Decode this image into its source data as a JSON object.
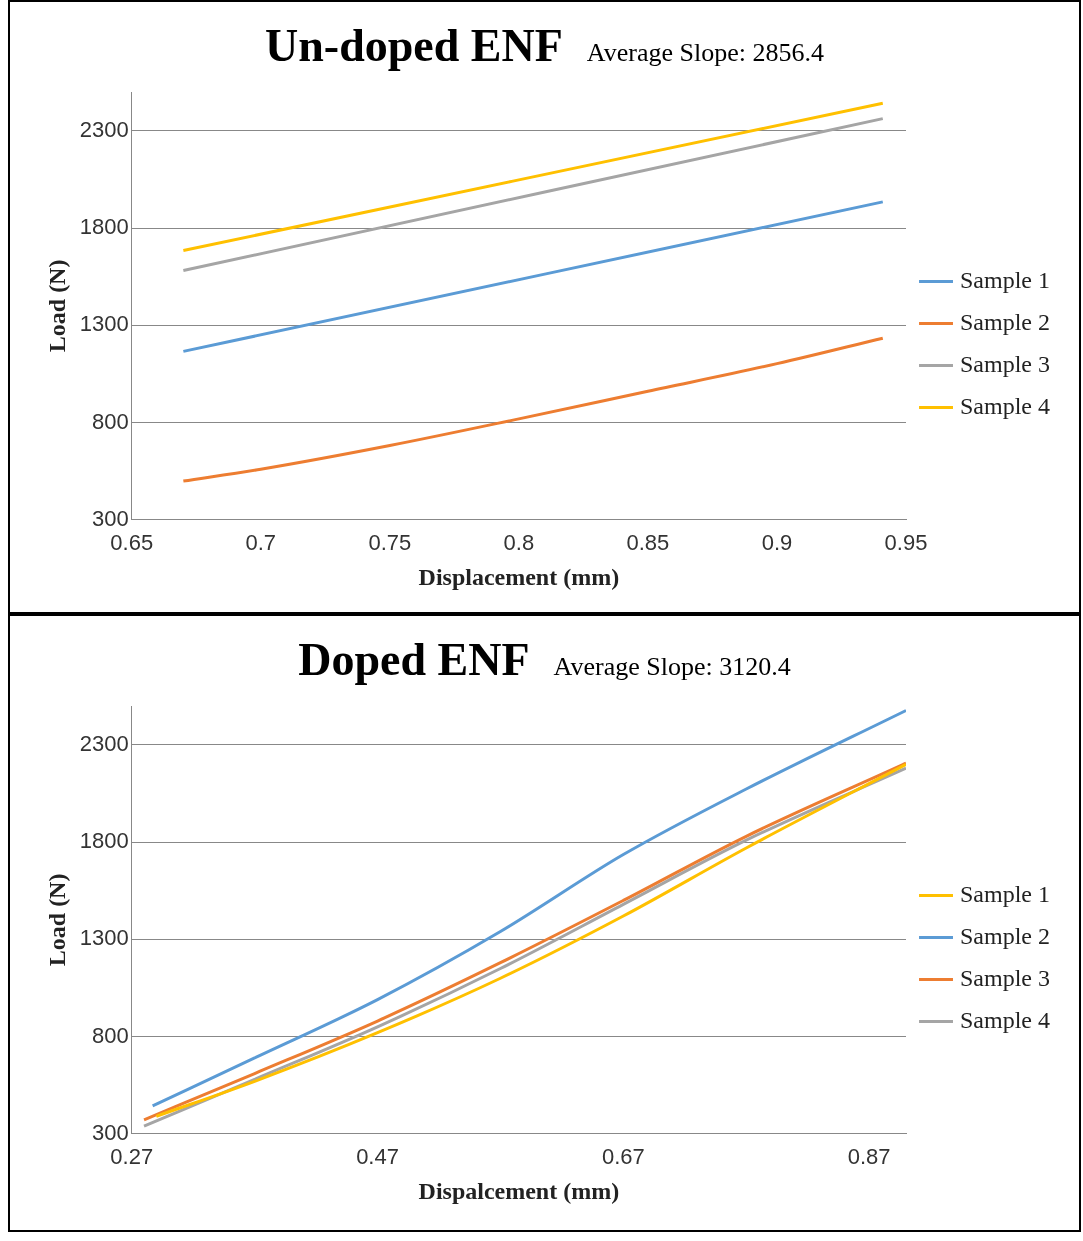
{
  "chart_data": [
    {
      "type": "line",
      "title": "Un-doped ENF",
      "annotations": [
        "Average Slope: 2856.4"
      ],
      "xlabel": "Displacement (mm)",
      "ylabel": "Load (N)",
      "xlim": [
        0.65,
        0.95
      ],
      "xticks": [
        0.65,
        0.7,
        0.75,
        0.8,
        0.85,
        0.9,
        0.95
      ],
      "ylim": [
        300,
        2500
      ],
      "yticks": [
        300,
        800,
        1300,
        1800,
        2300
      ],
      "grid": "y",
      "legend": "right",
      "line_style": "solid",
      "marker": "none",
      "series": [
        {
          "name": "Sample 1",
          "color": "#5b9bd5",
          "x": [
            0.67,
            0.941
          ],
          "values": [
            1166,
            1935
          ]
        },
        {
          "name": "Sample 2",
          "color": "#ed7d31",
          "x": [
            0.67,
            0.7,
            0.75,
            0.8,
            0.85,
            0.9,
            0.941
          ],
          "values": [
            499,
            560,
            682,
            819,
            961,
            1103,
            1234
          ]
        },
        {
          "name": "Sample 3",
          "color": "#a5a5a5",
          "x": [
            0.67,
            0.941
          ],
          "values": [
            1582,
            2363
          ]
        },
        {
          "name": "Sample 4",
          "color": "#ffc000",
          "x": [
            0.67,
            0.941
          ],
          "values": [
            1685,
            2442
          ]
        }
      ]
    },
    {
      "type": "line",
      "title": "Doped ENF",
      "annotations": [
        "Average Slope: 3120.4"
      ],
      "xlabel": "Dispalcement (mm)",
      "ylabel": "Load (N)",
      "xlim": [
        0.27,
        0.9
      ],
      "xticks": [
        0.27,
        0.47,
        0.67,
        0.87
      ],
      "ylim": [
        300,
        2500
      ],
      "yticks": [
        300,
        800,
        1300,
        1800,
        2300
      ],
      "grid": "y",
      "legend": "right",
      "line_style": "solid",
      "marker": "none",
      "series": [
        {
          "name": "Sample 1",
          "color": "#ffc000",
          "x": [
            0.29,
            0.37,
            0.47,
            0.57,
            0.67,
            0.77,
            0.9
          ],
          "values": [
            390,
            570,
            820,
            1100,
            1420,
            1770,
            2200
          ]
        },
        {
          "name": "Sample 2",
          "color": "#5b9bd5",
          "x": [
            0.287,
            0.37,
            0.47,
            0.57,
            0.67,
            0.77,
            0.9
          ],
          "values": [
            444,
            690,
            990,
            1340,
            1736,
            2073,
            2477
          ]
        },
        {
          "name": "Sample 3",
          "color": "#ed7d31",
          "x": [
            0.28,
            0.37,
            0.47,
            0.57,
            0.67,
            0.77,
            0.9
          ],
          "values": [
            372,
            610,
            880,
            1180,
            1500,
            1830,
            2206
          ]
        },
        {
          "name": "Sample 4",
          "color": "#a5a5a5",
          "x": [
            0.28,
            0.37,
            0.47,
            0.57,
            0.67,
            0.77,
            0.9
          ],
          "values": [
            339,
            580,
            850,
            1150,
            1480,
            1810,
            2180
          ]
        }
      ]
    }
  ]
}
